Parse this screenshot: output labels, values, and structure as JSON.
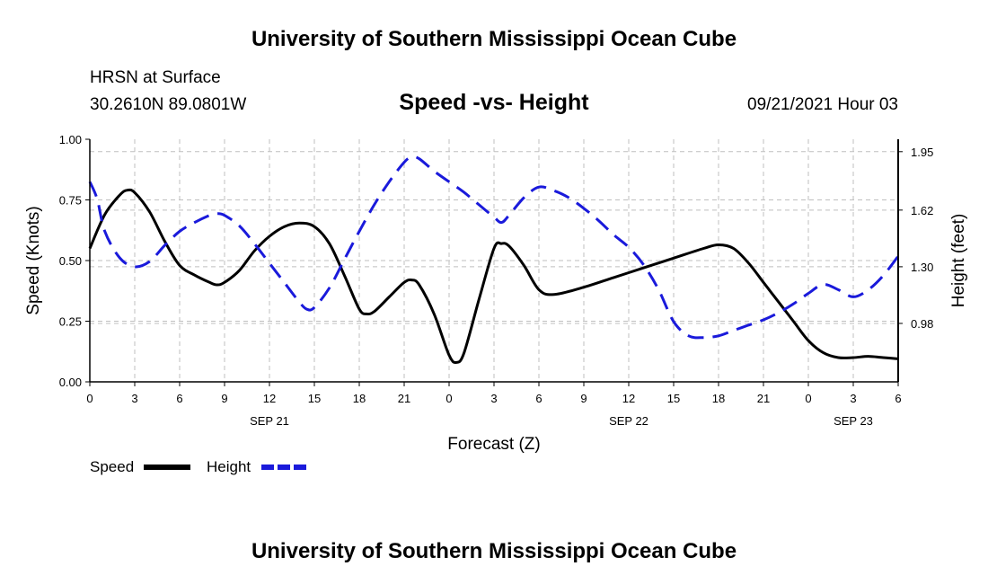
{
  "header": {
    "title": "University of Southern Mississippi Ocean Cube",
    "station": "HRSN at Surface",
    "coords": "30.2610N  89.0801W",
    "chart_title": "Speed -vs- Height",
    "datetime": "09/21/2021 Hour 03"
  },
  "footer": {
    "title": "University of Southern Mississippi Ocean Cube"
  },
  "colors": {
    "speed": "#000000",
    "height": "#1a1adb",
    "grid": "#bfbfbf"
  },
  "chart_data": {
    "type": "line",
    "title": "Speed -vs- Height",
    "xlabel": "Forecast (Z)",
    "ylabel": "Speed (Knots)",
    "y2label": "Height (feet)",
    "xlim": [
      0,
      54
    ],
    "ylim": [
      0,
      1.0
    ],
    "y2lim": [
      0.65,
      2.02
    ],
    "x_ticks": [
      0,
      3,
      6,
      9,
      12,
      15,
      18,
      21,
      24,
      27,
      30,
      33,
      36,
      39,
      42,
      45,
      48,
      51,
      54
    ],
    "x_tick_labels": [
      "0",
      "3",
      "6",
      "9",
      "12",
      "15",
      "18",
      "21",
      "0",
      "3",
      "6",
      "9",
      "12",
      "15",
      "18",
      "21",
      "0",
      "3",
      "6"
    ],
    "date_labels": [
      {
        "hour": 12,
        "label": "SEP 21"
      },
      {
        "hour": 36,
        "label": "SEP 22"
      },
      {
        "hour": 51,
        "label": "SEP 23"
      }
    ],
    "y_ticks": [
      0.0,
      0.25,
      0.5,
      0.75,
      1.0
    ],
    "y_tick_labels": [
      "0.00",
      "0.25",
      "0.50",
      "0.75",
      "1.00"
    ],
    "y2_ticks": [
      0.98,
      1.3,
      1.62,
      1.95
    ],
    "y2_tick_labels": [
      "0.98",
      "1.30",
      "1.62",
      "1.95"
    ],
    "grid": true,
    "legend": [
      {
        "name": "Speed",
        "style": "solid"
      },
      {
        "name": "Height",
        "style": "dashed"
      }
    ],
    "series": [
      {
        "name": "Speed",
        "axis": "left",
        "x": [
          0,
          1,
          2,
          2.5,
          3,
          4,
          5,
          6,
          7,
          8,
          8.5,
          9,
          10,
          11,
          12,
          13,
          14,
          15,
          16,
          17,
          18,
          18.5,
          19,
          20,
          21,
          21.5,
          22,
          23,
          24,
          24.5,
          25,
          26,
          27,
          27.5,
          28,
          29,
          30,
          31,
          33,
          35,
          37,
          39,
          41,
          42,
          43,
          44,
          45,
          45.5,
          46,
          47,
          48,
          49,
          50,
          51,
          52,
          53,
          54
        ],
        "values": [
          0.55,
          0.69,
          0.77,
          0.79,
          0.78,
          0.7,
          0.58,
          0.48,
          0.44,
          0.41,
          0.4,
          0.41,
          0.46,
          0.54,
          0.6,
          0.64,
          0.655,
          0.64,
          0.57,
          0.44,
          0.3,
          0.28,
          0.29,
          0.35,
          0.41,
          0.42,
          0.4,
          0.28,
          0.11,
          0.08,
          0.12,
          0.34,
          0.55,
          0.57,
          0.56,
          0.48,
          0.38,
          0.36,
          0.39,
          0.43,
          0.47,
          0.51,
          0.55,
          0.565,
          0.55,
          0.49,
          0.41,
          0.37,
          0.33,
          0.25,
          0.17,
          0.12,
          0.1,
          0.1,
          0.105,
          0.1,
          0.095
        ]
      },
      {
        "name": "Height",
        "axis": "right",
        "x": [
          0,
          0.5,
          1,
          2,
          3,
          4,
          5,
          6,
          7,
          8,
          8.5,
          9,
          10,
          11,
          12,
          13,
          14,
          14.5,
          15,
          16,
          17,
          18,
          19,
          20,
          21,
          21.5,
          22,
          23,
          24,
          25,
          26,
          27,
          27.5,
          28,
          29,
          30,
          31,
          32,
          33,
          34,
          35,
          36,
          37,
          38,
          39,
          40,
          41,
          42,
          43,
          44,
          45,
          46,
          47,
          48,
          49,
          50,
          51,
          52,
          53,
          54
        ],
        "values": [
          1.78,
          1.68,
          1.5,
          1.35,
          1.3,
          1.33,
          1.42,
          1.5,
          1.55,
          1.59,
          1.6,
          1.59,
          1.53,
          1.43,
          1.32,
          1.21,
          1.1,
          1.06,
          1.07,
          1.18,
          1.34,
          1.5,
          1.65,
          1.78,
          1.89,
          1.92,
          1.91,
          1.84,
          1.78,
          1.72,
          1.65,
          1.58,
          1.55,
          1.59,
          1.69,
          1.75,
          1.73,
          1.69,
          1.63,
          1.56,
          1.48,
          1.41,
          1.31,
          1.17,
          0.99,
          0.91,
          0.9,
          0.91,
          0.94,
          0.97,
          1.0,
          1.04,
          1.09,
          1.15,
          1.2,
          1.17,
          1.13,
          1.17,
          1.25,
          1.36
        ]
      }
    ]
  }
}
